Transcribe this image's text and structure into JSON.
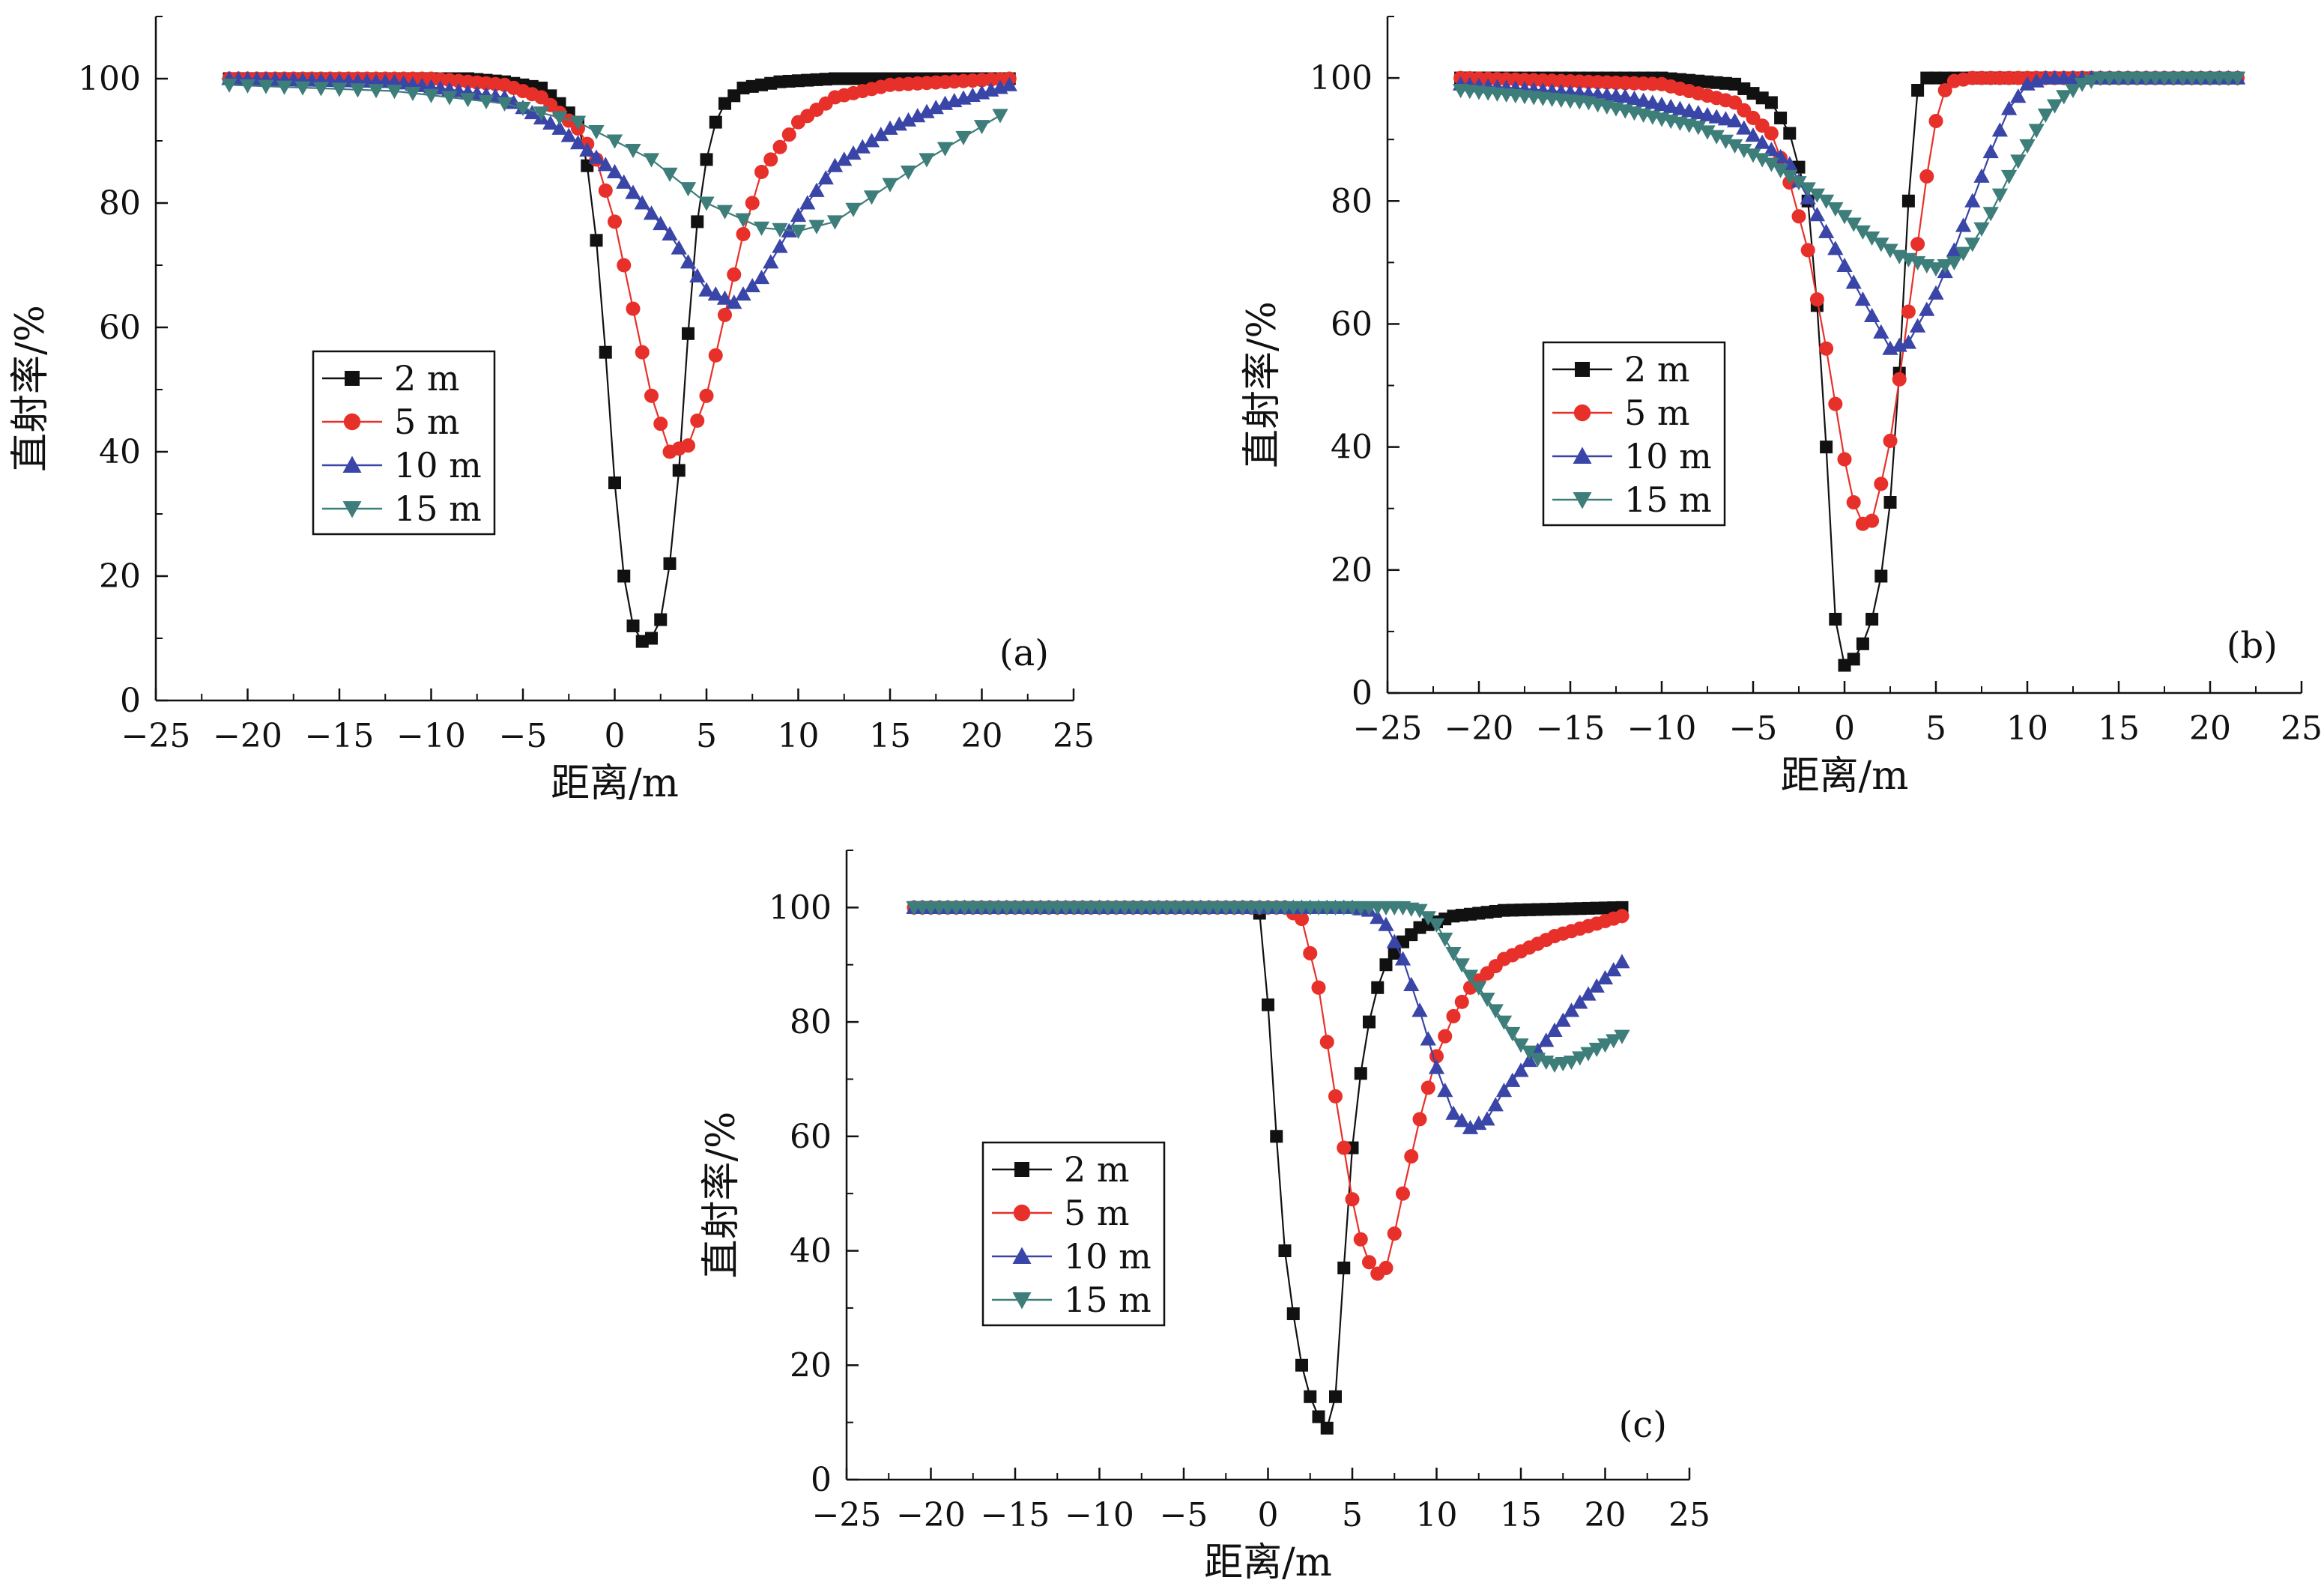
{
  "chart_data": [
    {
      "id": "a",
      "type": "scatter",
      "panel_label": "(a)",
      "xlabel": "距离/m",
      "ylabel": "直射率/%",
      "xlim": [
        -25,
        25
      ],
      "ylim": [
        0,
        110
      ],
      "xticks": [
        -25,
        -20,
        -15,
        -10,
        -5,
        0,
        5,
        10,
        15,
        20,
        25
      ],
      "yticks": [
        0,
        20,
        40,
        60,
        80,
        100
      ],
      "xtick_labels": [
        "−25",
        "−20",
        "−15",
        "−10",
        "−5",
        "0",
        "5",
        "10",
        "15",
        "20",
        "25"
      ],
      "ytick_labels": [
        "0",
        "20",
        "40",
        "60",
        "80",
        "100"
      ],
      "grid": false,
      "legend_position": "middle-left",
      "series": [
        {
          "name": "2 m",
          "marker": "square",
          "color": "#111111",
          "x_range": [
            -21,
            21.5
          ],
          "step": 0.5,
          "anchors": [
            [
              -21,
              100
            ],
            [
              -8,
              100
            ],
            [
              -6,
              99.5
            ],
            [
              -4,
              98.5
            ],
            [
              -3,
              96
            ],
            [
              -2,
              93
            ],
            [
              -1.5,
              86
            ],
            [
              -1,
              74
            ],
            [
              -0.5,
              56
            ],
            [
              0,
              35
            ],
            [
              0.5,
              20
            ],
            [
              1,
              12
            ],
            [
              1.5,
              9.5
            ],
            [
              2,
              10
            ],
            [
              2.5,
              13
            ],
            [
              3,
              22
            ],
            [
              3.5,
              37
            ],
            [
              4,
              59
            ],
            [
              4.5,
              77
            ],
            [
              5,
              87
            ],
            [
              5.5,
              93
            ],
            [
              6,
              96
            ],
            [
              7,
              98.5
            ],
            [
              9,
              99.5
            ],
            [
              12,
              100
            ],
            [
              21.5,
              100
            ]
          ]
        },
        {
          "name": "5 m",
          "marker": "circle",
          "color": "#e8302a",
          "x_range": [
            -21,
            21.5
          ],
          "step": 0.5,
          "anchors": [
            [
              -21,
              100
            ],
            [
              -10,
              100
            ],
            [
              -6,
              99
            ],
            [
              -4,
              97
            ],
            [
              -2,
              92
            ],
            [
              -1,
              87
            ],
            [
              0,
              77
            ],
            [
              1,
              63
            ],
            [
              2,
              49
            ],
            [
              3,
              40
            ],
            [
              4,
              41
            ],
            [
              5,
              49
            ],
            [
              6,
              62
            ],
            [
              7,
              75
            ],
            [
              8,
              85
            ],
            [
              10,
              93
            ],
            [
              12,
              97
            ],
            [
              15,
              99
            ],
            [
              21.5,
              100
            ]
          ]
        },
        {
          "name": "10 m",
          "marker": "triangle-up",
          "color": "#3a45a8",
          "x_range": [
            -21,
            21.5
          ],
          "step": 0.5,
          "anchors": [
            [
              -21,
              100
            ],
            [
              -12,
              99.5
            ],
            [
              -6,
              97
            ],
            [
              -3,
              92
            ],
            [
              0,
              85
            ],
            [
              3,
              75
            ],
            [
              5,
              66
            ],
            [
              6.5,
              64
            ],
            [
              8,
              68
            ],
            [
              10,
              78
            ],
            [
              12,
              86
            ],
            [
              15,
              92
            ],
            [
              18,
              96
            ],
            [
              21.5,
              99
            ]
          ]
        },
        {
          "name": "15 m",
          "marker": "triangle-down",
          "color": "#3d7d7a",
          "x_range": [
            -21,
            21.5
          ],
          "step": 1,
          "anchors": [
            [
              -21,
              99
            ],
            [
              -12,
              98
            ],
            [
              -6,
              96
            ],
            [
              -2,
              93
            ],
            [
              2,
              87
            ],
            [
              5,
              80
            ],
            [
              8,
              76
            ],
            [
              10,
              75.5
            ],
            [
              12,
              77
            ],
            [
              14,
              81
            ],
            [
              17,
              87
            ],
            [
              21.5,
              95
            ]
          ]
        }
      ]
    },
    {
      "id": "b",
      "type": "scatter",
      "panel_label": "(b)",
      "xlabel": "距离/m",
      "ylabel": "直射率/%",
      "xlim": [
        -25,
        25
      ],
      "ylim": [
        0,
        110
      ],
      "xticks": [
        -25,
        -20,
        -15,
        -10,
        -5,
        0,
        5,
        10,
        15,
        20,
        25
      ],
      "yticks": [
        0,
        20,
        40,
        60,
        80,
        100
      ],
      "xtick_labels": [
        "−25",
        "−20",
        "−15",
        "−10",
        "−5",
        "0",
        "5",
        "10",
        "15",
        "20",
        "25"
      ],
      "ytick_labels": [
        "0",
        "20",
        "40",
        "60",
        "80",
        "100"
      ],
      "grid": false,
      "legend_position": "middle-left",
      "series": [
        {
          "name": "2 m",
          "marker": "square",
          "color": "#111111",
          "x_range": [
            -21,
            21.5
          ],
          "step": 0.5,
          "anchors": [
            [
              -21,
              100
            ],
            [
              -10,
              100
            ],
            [
              -6,
              99
            ],
            [
              -4,
              96
            ],
            [
              -3,
              91
            ],
            [
              -2,
              80
            ],
            [
              -1.5,
              63
            ],
            [
              -1,
              40
            ],
            [
              -0.5,
              12
            ],
            [
              0,
              4.5
            ],
            [
              0.5,
              5.5
            ],
            [
              1,
              8
            ],
            [
              1.5,
              12
            ],
            [
              2,
              19
            ],
            [
              2.5,
              31
            ],
            [
              3,
              52
            ],
            [
              3.5,
              80
            ],
            [
              4,
              98
            ],
            [
              4.5,
              100
            ],
            [
              21.5,
              100
            ]
          ]
        },
        {
          "name": "5 m",
          "marker": "circle",
          "color": "#e8302a",
          "x_range": [
            -21,
            21.5
          ],
          "step": 0.5,
          "anchors": [
            [
              -21,
              100
            ],
            [
              -10,
              99
            ],
            [
              -6,
              96
            ],
            [
              -4,
              91
            ],
            [
              -3,
              83
            ],
            [
              -2,
              72
            ],
            [
              -1,
              56
            ],
            [
              0,
              38
            ],
            [
              0.5,
              31
            ],
            [
              1,
              27.5
            ],
            [
              1.5,
              28
            ],
            [
              2,
              34
            ],
            [
              2.5,
              41
            ],
            [
              3,
              51
            ],
            [
              3.5,
              62
            ],
            [
              4,
              73
            ],
            [
              4.5,
              84
            ],
            [
              5,
              93
            ],
            [
              5.5,
              98
            ],
            [
              6,
              99.5
            ],
            [
              7,
              100
            ],
            [
              21.5,
              100
            ]
          ]
        },
        {
          "name": "10 m",
          "marker": "triangle-up",
          "color": "#3a45a8",
          "x_range": [
            -21,
            21.5
          ],
          "step": 0.5,
          "anchors": [
            [
              -21,
              99
            ],
            [
              -12,
              97
            ],
            [
              -6,
              93
            ],
            [
              -3,
              86
            ],
            [
              -1,
              75
            ],
            [
              1,
              64
            ],
            [
              2.5,
              56
            ],
            [
              3.5,
              57
            ],
            [
              5,
              65
            ],
            [
              6,
              72
            ],
            [
              7,
              80
            ],
            [
              8,
              88
            ],
            [
              9,
              95
            ],
            [
              10,
              99
            ],
            [
              11,
              100
            ],
            [
              21.5,
              100
            ]
          ]
        },
        {
          "name": "15 m",
          "marker": "triangle-down",
          "color": "#3d7d7a",
          "x_range": [
            -21,
            21.5
          ],
          "step": 0.5,
          "anchors": [
            [
              -21,
              98
            ],
            [
              -14,
              96
            ],
            [
              -8,
              92
            ],
            [
              -4,
              86
            ],
            [
              -1,
              80
            ],
            [
              1,
              75
            ],
            [
              3,
              71
            ],
            [
              5,
              69
            ],
            [
              6,
              70
            ],
            [
              7,
              73
            ],
            [
              8,
              78
            ],
            [
              9,
              84
            ],
            [
              10,
              89
            ],
            [
              11,
              94
            ],
            [
              12,
              97
            ],
            [
              13,
              99
            ],
            [
              14,
              100
            ],
            [
              21.5,
              100
            ]
          ]
        }
      ]
    },
    {
      "id": "c",
      "type": "scatter",
      "panel_label": "(c)",
      "xlabel": "距离/m",
      "ylabel": "直射率/%",
      "xlim": [
        -25,
        25
      ],
      "ylim": [
        0,
        110
      ],
      "xticks": [
        -25,
        -20,
        -15,
        -10,
        -5,
        0,
        5,
        10,
        15,
        20,
        25
      ],
      "yticks": [
        0,
        20,
        40,
        60,
        80,
        100
      ],
      "xtick_labels": [
        "−25",
        "−20",
        "−15",
        "−10",
        "−5",
        "0",
        "5",
        "10",
        "15",
        "20",
        "25"
      ],
      "ytick_labels": [
        "0",
        "20",
        "40",
        "60",
        "80",
        "100"
      ],
      "grid": false,
      "legend_position": "middle-left",
      "series": [
        {
          "name": "2 m",
          "marker": "square",
          "color": "#111111",
          "x_range": [
            -21,
            21
          ],
          "step": 0.5,
          "anchors": [
            [
              -21,
              100
            ],
            [
              -1,
              100
            ],
            [
              -0.5,
              99
            ],
            [
              0,
              83
            ],
            [
              0.5,
              60
            ],
            [
              1,
              40
            ],
            [
              1.5,
              29
            ],
            [
              2,
              20
            ],
            [
              2.5,
              14.5
            ],
            [
              3,
              11
            ],
            [
              3.5,
              9
            ],
            [
              4,
              14.5
            ],
            [
              4.5,
              37
            ],
            [
              5,
              58
            ],
            [
              5.5,
              71
            ],
            [
              6,
              80
            ],
            [
              6.5,
              86
            ],
            [
              7,
              90
            ],
            [
              8,
              94
            ],
            [
              9,
              96.5
            ],
            [
              11,
              98.5
            ],
            [
              14,
              99.5
            ],
            [
              21,
              100
            ]
          ]
        },
        {
          "name": "5 m",
          "marker": "circle",
          "color": "#e8302a",
          "x_range": [
            -21,
            21
          ],
          "step": 0.5,
          "anchors": [
            [
              -21,
              100
            ],
            [
              1,
              100
            ],
            [
              2,
              98
            ],
            [
              3,
              86
            ],
            [
              4,
              67
            ],
            [
              5,
              49
            ],
            [
              5.5,
              42
            ],
            [
              6,
              38
            ],
            [
              6.5,
              36
            ],
            [
              7,
              37
            ],
            [
              7.5,
              43
            ],
            [
              8,
              50
            ],
            [
              9,
              63
            ],
            [
              10,
              74
            ],
            [
              11,
              81
            ],
            [
              12,
              86
            ],
            [
              14,
              91
            ],
            [
              17,
              95
            ],
            [
              21,
              98.5
            ]
          ]
        },
        {
          "name": "10 m",
          "marker": "triangle-up",
          "color": "#3a45a8",
          "x_range": [
            -21,
            21
          ],
          "step": 0.5,
          "anchors": [
            [
              -21,
              100
            ],
            [
              5,
              100
            ],
            [
              6,
              99.5
            ],
            [
              7,
              97
            ],
            [
              8,
              91
            ],
            [
              9,
              82
            ],
            [
              10,
              72
            ],
            [
              11,
              64
            ],
            [
              12,
              61.5
            ],
            [
              13,
              63
            ],
            [
              14,
              68
            ],
            [
              16,
              75
            ],
            [
              18,
              82
            ],
            [
              21,
              90.5
            ]
          ]
        },
        {
          "name": "15 m",
          "marker": "triangle-down",
          "color": "#3d7d7a",
          "x_range": [
            -21,
            21
          ],
          "step": 0.5,
          "anchors": [
            [
              -21,
              100
            ],
            [
              8,
              100
            ],
            [
              9,
              99.5
            ],
            [
              10,
              97
            ],
            [
              11,
              92
            ],
            [
              12,
              88
            ],
            [
              13,
              84
            ],
            [
              14,
              80
            ],
            [
              15,
              76
            ],
            [
              16,
              73.5
            ],
            [
              17,
              72.5
            ],
            [
              18,
              73
            ],
            [
              19,
              74.5
            ],
            [
              21,
              77.5
            ]
          ]
        }
      ]
    }
  ]
}
